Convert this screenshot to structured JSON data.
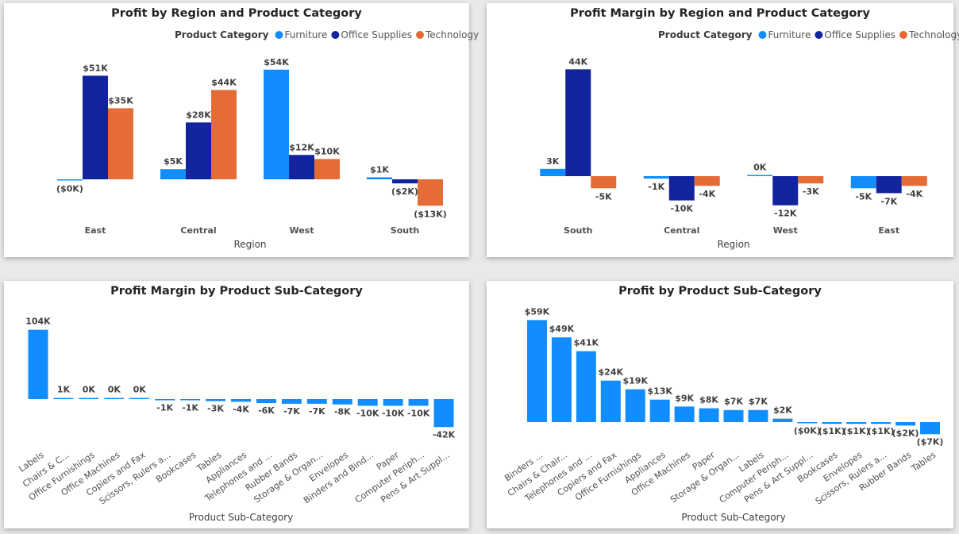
{
  "colors": {
    "Furniture": "#118dff",
    "Office Supplies": "#12239e",
    "Technology": "#e66c37",
    "single": "#118dff"
  },
  "legend_title": "Product Category",
  "chart_data": [
    {
      "type": "bar",
      "title": "Profit by Region and Product Category",
      "xlabel": "Region",
      "ylabel": "",
      "legend": "top-right",
      "categories": [
        "East",
        "Central",
        "West",
        "South"
      ],
      "series": [
        {
          "name": "Furniture",
          "values": [
            -0.3,
            5,
            54,
            1
          ],
          "labels": [
            "($0K)",
            "$5K",
            "$54K",
            "$1K"
          ]
        },
        {
          "name": "Office Supplies",
          "values": [
            51,
            28,
            12,
            -2
          ],
          "labels": [
            "$51K",
            "$28K",
            "$12K",
            "($2K)"
          ]
        },
        {
          "name": "Technology",
          "values": [
            35,
            44,
            10,
            -13
          ],
          "labels": [
            "$35K",
            "$44K",
            "$10K",
            "($13K)"
          ]
        }
      ]
    },
    {
      "type": "bar",
      "title": "Profit Margin by Region and Product Category",
      "xlabel": "Region",
      "ylabel": "",
      "legend": "top-right",
      "categories": [
        "South",
        "Central",
        "West",
        "East"
      ],
      "series": [
        {
          "name": "Furniture",
          "values": [
            3,
            -1,
            0.2,
            -5
          ],
          "labels": [
            "3K",
            "-1K",
            "0K",
            "-5K"
          ]
        },
        {
          "name": "Office Supplies",
          "values": [
            44,
            -10,
            -12,
            -7
          ],
          "labels": [
            "44K",
            "-10K",
            "-12K",
            "-7K"
          ]
        },
        {
          "name": "Technology",
          "values": [
            -5,
            -4,
            -3,
            -4
          ],
          "labels": [
            "-5K",
            "-4K",
            "-3K",
            "-4K"
          ]
        }
      ]
    },
    {
      "type": "bar",
      "title": "Profit Margin by Product Sub-Category",
      "xlabel": "Product Sub-Category",
      "ylabel": "",
      "categories": [
        "Labels",
        "Chairs & C...",
        "Office Furnishings",
        "Office Machines",
        "Copiers and Fax",
        "Scissors, Rulers a...",
        "Bookcases",
        "Tables",
        "Appliances",
        "Telephones and ...",
        "Rubber Bands",
        "Storage & Organ...",
        "Envelopes",
        "Binders and Bind...",
        "Paper",
        "Computer Periph...",
        "Pens & Art Suppl..."
      ],
      "values": [
        104,
        1,
        0.3,
        0.3,
        0.3,
        -1,
        -1,
        -3,
        -4,
        -6,
        -7,
        -7,
        -8,
        -10,
        -10,
        -10,
        -42
      ],
      "labels": [
        "104K",
        "1K",
        "0K",
        "0K",
        "0K",
        "-1K",
        "-1K",
        "-3K",
        "-4K",
        "-6K",
        "-7K",
        "-7K",
        "-8K",
        "-10K",
        "-10K",
        "-10K",
        "-42K"
      ]
    },
    {
      "type": "bar",
      "title": "Profit by Product Sub-Category",
      "xlabel": "Product Sub-Category",
      "ylabel": "",
      "categories": [
        "Binders ...",
        "Chairs & Chair...",
        "Telephones and ...",
        "Copiers and Fax",
        "Office Furnishings",
        "Appliances",
        "Office Machines",
        "Paper",
        "Storage & Organ...",
        "Labels",
        "Computer Periph...",
        "Pens & Art Suppl...",
        "Bookcases",
        "Envelopes",
        "Scissors, Rulers a...",
        "Rubber Bands",
        "Tables"
      ],
      "values": [
        59,
        49,
        41,
        24,
        19,
        13,
        9,
        8,
        7,
        7,
        2,
        -0.3,
        -1,
        -1,
        -1,
        -2,
        -7
      ],
      "labels": [
        "$59K",
        "$49K",
        "$41K",
        "$24K",
        "$19K",
        "$13K",
        "$9K",
        "$8K",
        "$7K",
        "$7K",
        "$2K",
        "($0K)",
        "($1K)",
        "($1K)",
        "($1K)",
        "($2K)",
        "($7K)"
      ]
    }
  ]
}
